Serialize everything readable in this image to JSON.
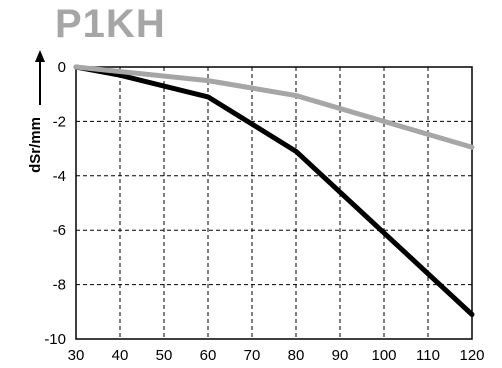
{
  "chart_data": {
    "type": "line",
    "title": "P1KH",
    "ylabel": "dSr/mm",
    "xlabel": "",
    "xlim": [
      30,
      120
    ],
    "ylim": [
      -10,
      0
    ],
    "x_ticks": [
      30,
      40,
      50,
      60,
      70,
      80,
      90,
      100,
      110,
      120
    ],
    "y_ticks": [
      0,
      -2,
      -4,
      -6,
      -8,
      -10
    ],
    "grid": true,
    "series": [
      {
        "color": "#000000",
        "x": [
          30,
          40,
          60,
          80,
          100,
          120
        ],
        "y": [
          0,
          -0.3,
          -1.1,
          -3.1,
          -6.1,
          -9.1
        ]
      },
      {
        "color": "#a6a6a6",
        "x": [
          30,
          60,
          80,
          100,
          120
        ],
        "y": [
          0,
          -0.5,
          -1.05,
          -2.0,
          -2.95
        ]
      }
    ]
  }
}
